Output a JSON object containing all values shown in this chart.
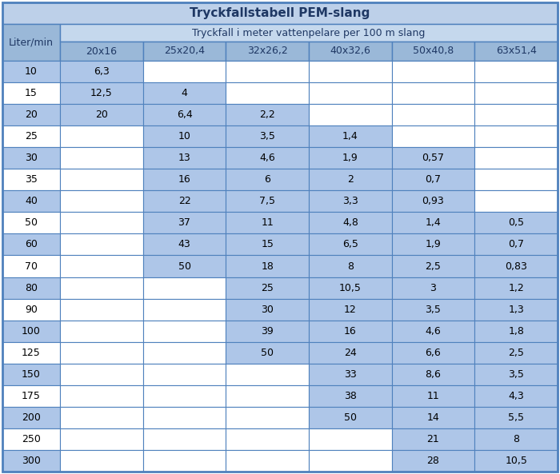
{
  "title": "Tryckfallstabell PEM-slang",
  "subtitle": "Tryckfall i meter vattenpelare per 100 m slang",
  "col_header": [
    "20x16",
    "25x20,4",
    "32x26,2",
    "40x32,6",
    "50x40,8",
    "63x51,4"
  ],
  "rows": [
    10,
    15,
    20,
    25,
    30,
    35,
    40,
    50,
    60,
    70,
    80,
    90,
    100,
    125,
    150,
    175,
    200,
    250,
    300
  ],
  "data": [
    [
      "6,3",
      "",
      "",
      "",
      "",
      ""
    ],
    [
      "12,5",
      "4",
      "",
      "",
      "",
      ""
    ],
    [
      "20",
      "6,4",
      "2,2",
      "",
      "",
      ""
    ],
    [
      "",
      "10",
      "3,5",
      "1,4",
      "",
      ""
    ],
    [
      "",
      "13",
      "4,6",
      "1,9",
      "0,57",
      ""
    ],
    [
      "",
      "16",
      "6",
      "2",
      "0,7",
      ""
    ],
    [
      "",
      "22",
      "7,5",
      "3,3",
      "0,93",
      ""
    ],
    [
      "",
      "37",
      "11",
      "4,8",
      "1,4",
      "0,5"
    ],
    [
      "",
      "43",
      "15",
      "6,5",
      "1,9",
      "0,7"
    ],
    [
      "",
      "50",
      "18",
      "8",
      "2,5",
      "0,83"
    ],
    [
      "",
      "",
      "25",
      "10,5",
      "3",
      "1,2"
    ],
    [
      "",
      "",
      "30",
      "12",
      "3,5",
      "1,3"
    ],
    [
      "",
      "",
      "39",
      "16",
      "4,6",
      "1,8"
    ],
    [
      "",
      "",
      "50",
      "24",
      "6,6",
      "2,5"
    ],
    [
      "",
      "",
      "",
      "33",
      "8,6",
      "3,5"
    ],
    [
      "",
      "",
      "",
      "38",
      "11",
      "4,3"
    ],
    [
      "",
      "",
      "",
      "50",
      "14",
      "5,5"
    ],
    [
      "",
      "",
      "",
      "",
      "21",
      "8"
    ],
    [
      "",
      "",
      "",
      "",
      "28",
      "10,5"
    ]
  ],
  "cell_colors": [
    [
      "blue",
      "white",
      "white",
      "white",
      "white",
      "white"
    ],
    [
      "blue",
      "blue",
      "white",
      "white",
      "white",
      "white"
    ],
    [
      "blue",
      "blue",
      "blue",
      "white",
      "white",
      "white"
    ],
    [
      "white",
      "blue",
      "blue",
      "blue",
      "white",
      "white"
    ],
    [
      "white",
      "blue",
      "blue",
      "blue",
      "blue",
      "white"
    ],
    [
      "white",
      "blue",
      "blue",
      "blue",
      "blue",
      "white"
    ],
    [
      "white",
      "blue",
      "blue",
      "blue",
      "blue",
      "white"
    ],
    [
      "white",
      "blue",
      "blue",
      "blue",
      "blue",
      "blue"
    ],
    [
      "white",
      "blue",
      "blue",
      "blue",
      "blue",
      "blue"
    ],
    [
      "white",
      "blue",
      "blue",
      "blue",
      "blue",
      "blue"
    ],
    [
      "white",
      "white",
      "blue",
      "blue",
      "blue",
      "blue"
    ],
    [
      "white",
      "white",
      "blue",
      "blue",
      "blue",
      "blue"
    ],
    [
      "white",
      "white",
      "blue",
      "blue",
      "blue",
      "blue"
    ],
    [
      "white",
      "white",
      "blue",
      "blue",
      "blue",
      "blue"
    ],
    [
      "white",
      "white",
      "white",
      "blue",
      "blue",
      "blue"
    ],
    [
      "white",
      "white",
      "white",
      "blue",
      "blue",
      "blue"
    ],
    [
      "white",
      "white",
      "white",
      "blue",
      "blue",
      "blue"
    ],
    [
      "white",
      "white",
      "white",
      "white",
      "blue",
      "blue"
    ],
    [
      "white",
      "white",
      "white",
      "white",
      "blue",
      "blue"
    ]
  ],
  "color_blue": "#aec6e8",
  "color_white": "#ffffff",
  "color_header_blue": "#9ab8d8",
  "color_title_bg": "#bdd0e9",
  "color_border": "#4f81bd",
  "color_subheader_bg": "#c5d8ed",
  "title_text_color": "#1f3864",
  "header_text_color": "#1f3864",
  "data_text_color": "#000000"
}
